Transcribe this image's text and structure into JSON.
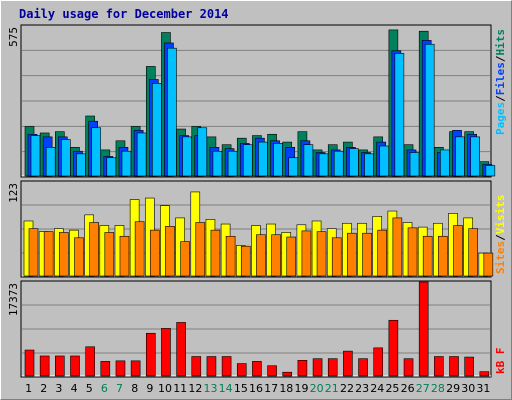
{
  "title": "Daily usage for December 2014",
  "colors": {
    "background": "#c0c0c0",
    "panel": "#c0c0c0",
    "gridline": "#808080",
    "hits": "#00805c",
    "files": "#0040ff",
    "pages": "#00c0ff",
    "visits": "#ffff00",
    "sites": "#ff8000",
    "kbytes": "#ff0000",
    "weekend_label": "#00805c",
    "weekday_label": "#000000",
    "title": "#0000a0"
  },
  "chart_data": [
    {
      "type": "bar",
      "panel": "hits-files-pages",
      "ymax_label": "575",
      "ylim": [
        0,
        575
      ],
      "grid": true,
      "categories": [
        "1",
        "2",
        "3",
        "4",
        "5",
        "6",
        "7",
        "8",
        "9",
        "10",
        "11",
        "12",
        "13",
        "14",
        "15",
        "16",
        "17",
        "18",
        "19",
        "20",
        "21",
        "22",
        "23",
        "24",
        "25",
        "26",
        "27",
        "28",
        "29",
        "30",
        "31"
      ],
      "series": [
        {
          "name": "Hits",
          "values": [
            190,
            165,
            170,
            110,
            230,
            100,
            135,
            190,
            420,
            550,
            180,
            190,
            150,
            120,
            145,
            155,
            160,
            130,
            170,
            100,
            120,
            130,
            100,
            150,
            560,
            120,
            555,
            110,
            170,
            170,
            55
          ]
        },
        {
          "name": "Files",
          "values": [
            160,
            150,
            150,
            95,
            210,
            75,
            110,
            175,
            370,
            510,
            155,
            155,
            110,
            105,
            125,
            145,
            135,
            110,
            135,
            90,
            100,
            110,
            90,
            130,
            480,
            100,
            520,
            90,
            175,
            160,
            45
          ]
        },
        {
          "name": "Pages",
          "values": [
            155,
            110,
            140,
            85,
            185,
            70,
            95,
            165,
            355,
            490,
            150,
            185,
            95,
            95,
            120,
            130,
            125,
            70,
            120,
            85,
            95,
            105,
            85,
            115,
            470,
            90,
            505,
            100,
            150,
            150,
            40
          ]
        }
      ]
    },
    {
      "type": "bar",
      "panel": "visits-sites",
      "ymax_label": "123",
      "ylim": [
        0,
        123
      ],
      "grid": true,
      "categories": [
        "1",
        "2",
        "3",
        "4",
        "5",
        "6",
        "7",
        "8",
        "9",
        "10",
        "11",
        "12",
        "13",
        "14",
        "15",
        "16",
        "17",
        "18",
        "19",
        "20",
        "21",
        "22",
        "23",
        "24",
        "25",
        "26",
        "27",
        "28",
        "29",
        "30",
        "31"
      ],
      "series": [
        {
          "name": "Visits",
          "values": [
            72,
            58,
            62,
            60,
            80,
            66,
            66,
            100,
            102,
            92,
            76,
            110,
            74,
            68,
            40,
            66,
            68,
            57,
            67,
            72,
            62,
            69,
            69,
            78,
            85,
            70,
            64,
            69,
            82,
            76,
            30
          ]
        },
        {
          "name": "Sites",
          "values": [
            62,
            58,
            57,
            50,
            70,
            57,
            52,
            71,
            60,
            65,
            45,
            70,
            60,
            52,
            39,
            54,
            54,
            51,
            59,
            58,
            50,
            56,
            56,
            60,
            76,
            63,
            52,
            52,
            66,
            62,
            30
          ]
        }
      ]
    },
    {
      "type": "bar",
      "panel": "kbytes",
      "ymax_label": "17373",
      "ylim": [
        0,
        17373
      ],
      "grid": true,
      "categories": [
        "1",
        "2",
        "3",
        "4",
        "5",
        "6",
        "7",
        "8",
        "9",
        "10",
        "11",
        "12",
        "13",
        "14",
        "15",
        "16",
        "17",
        "18",
        "19",
        "20",
        "21",
        "22",
        "23",
        "24",
        "25",
        "26",
        "27",
        "28",
        "29",
        "30",
        "31"
      ],
      "series": [
        {
          "name": "KBytes",
          "values": [
            4800,
            3700,
            3700,
            3700,
            5400,
            2700,
            2800,
            2800,
            7900,
            8800,
            9900,
            3600,
            3600,
            3600,
            2300,
            2700,
            1900,
            700,
            2900,
            3200,
            3200,
            4600,
            3200,
            5200,
            10300,
            3200,
            17373,
            3600,
            3600,
            3500,
            800
          ]
        }
      ]
    }
  ],
  "x_labels": {
    "days": [
      "1",
      "2",
      "3",
      "4",
      "5",
      "6",
      "7",
      "8",
      "9",
      "10",
      "11",
      "12",
      "13",
      "14",
      "15",
      "16",
      "17",
      "18",
      "19",
      "20",
      "21",
      "22",
      "23",
      "24",
      "25",
      "26",
      "27",
      "28",
      "29",
      "30",
      "31"
    ],
    "weekend_days": [
      6,
      7,
      13,
      14,
      20,
      21,
      27,
      28
    ]
  },
  "legend": {
    "top": [
      {
        "text": "Pages",
        "color": "#00c0ff"
      },
      {
        "text": "/",
        "color": "#000000"
      },
      {
        "text": "Files",
        "color": "#0040ff"
      },
      {
        "text": "/",
        "color": "#000000"
      },
      {
        "text": "Hits",
        "color": "#00805c"
      }
    ],
    "middle": [
      {
        "text": "Sites",
        "color": "#ff8000"
      },
      {
        "text": "/",
        "color": "#000000"
      },
      {
        "text": "Visits",
        "color": "#ffff00"
      }
    ],
    "bottom": [
      {
        "text": "KBytes",
        "display": "kB F",
        "color": "#ff0000"
      }
    ]
  }
}
